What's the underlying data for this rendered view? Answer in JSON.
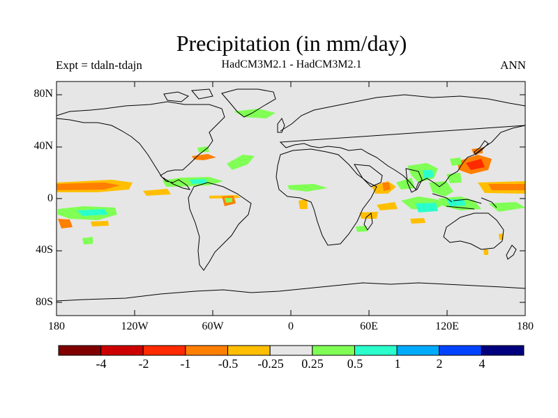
{
  "title": "Precipitation (in mm/day)",
  "subtitle_left": "Expt = tdaln-tdajn",
  "subtitle_center": "HadCM3M2.1 - HadCM3M2.1",
  "subtitle_right": "ANN",
  "lat_labels": [
    "80N",
    "40N",
    "0",
    "40S",
    "80S"
  ],
  "lon_labels": [
    "180",
    "120W",
    "60W",
    "0",
    "60E",
    "120E",
    "180"
  ],
  "colorbar": {
    "labels": [
      "-4",
      "-2",
      "-1",
      "-0.5",
      "-0.25",
      "0.25",
      "0.5",
      "1",
      "2",
      "4"
    ],
    "colors": [
      "#7f0000",
      "#cc0000",
      "#ff2a00",
      "#ff7f00",
      "#ffbf00",
      "#e6e6e6",
      "#80ff55",
      "#2affcc",
      "#00aaff",
      "#0044ff",
      "#00007f"
    ]
  },
  "colors": {
    "background": "#e6e6e6",
    "coast": "#000000",
    "neg_light": "#ffbf00",
    "neg_med": "#ff7f00",
    "pos_light": "#80ff55",
    "pos_med": "#2affcc"
  }
}
